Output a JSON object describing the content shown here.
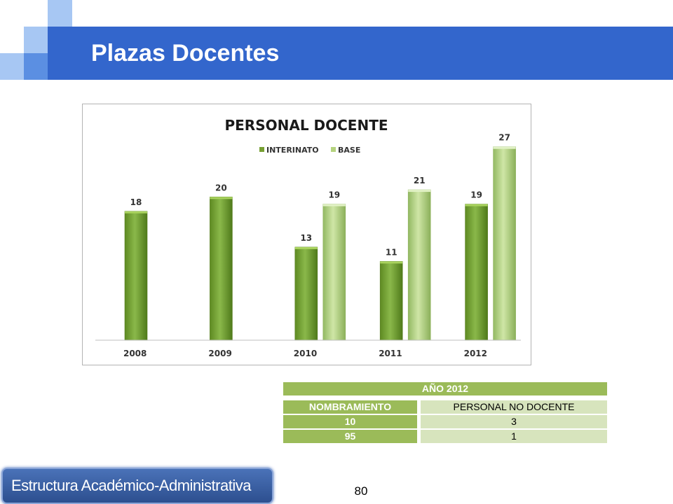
{
  "slide": {
    "title": "Plazas Docentes",
    "footer_label": "Estructura Académico-Administrativa",
    "page_number": "80"
  },
  "colors": {
    "title_bar": "#3366cc",
    "interinato": "#77a033",
    "base": "#b5d37f",
    "table_dark": "#9bbb59",
    "table_light": "#d7e4bd"
  },
  "chart_data": {
    "type": "bar",
    "title": "PERSONAL DOCENTE",
    "categories": [
      "2008",
      "2009",
      "2010",
      "2011",
      "2012"
    ],
    "series": [
      {
        "name": "INTERINATO",
        "values": [
          18,
          20,
          13,
          11,
          19
        ]
      },
      {
        "name": "BASE",
        "values": [
          null,
          null,
          19,
          21,
          27
        ]
      }
    ],
    "ylim": [
      0,
      30
    ],
    "grid": false,
    "legend": "top-center",
    "data_labels": true
  },
  "table": {
    "header": "AÑO 2012",
    "columns": [
      "NOMBRAMIENTO",
      "PERSONAL NO DOCENTE"
    ],
    "rows": [
      [
        "10",
        "3"
      ],
      [
        "95",
        "1"
      ]
    ]
  }
}
